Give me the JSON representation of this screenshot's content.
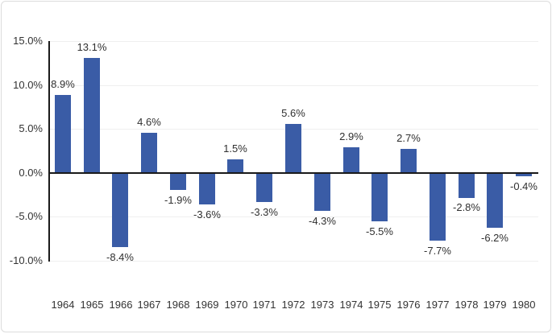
{
  "chart_data": {
    "type": "bar",
    "title": "",
    "xlabel": "",
    "ylabel": "",
    "categories": [
      "1964",
      "1965",
      "1966",
      "1967",
      "1968",
      "1969",
      "1970",
      "1971",
      "1972",
      "1973",
      "1974",
      "1975",
      "1976",
      "1977",
      "1978",
      "1979",
      "1980"
    ],
    "values": [
      8.9,
      13.1,
      -8.4,
      4.6,
      -1.9,
      -3.6,
      1.5,
      -3.3,
      5.6,
      -4.3,
      2.9,
      -5.5,
      2.7,
      -7.7,
      -2.8,
      -6.2,
      -0.4
    ],
    "data_labels": [
      "8.9%",
      "13.1%",
      "-8.4%",
      "4.6%",
      "-1.9%",
      "-3.6%",
      "1.5%",
      "-3.3%",
      "5.6%",
      "-4.3%",
      "2.9%",
      "-5.5%",
      "2.7%",
      "-7.7%",
      "-2.8%",
      "-6.2%",
      "-0.4%"
    ],
    "ylim": [
      -10,
      15
    ],
    "ytick_values": [
      15,
      10,
      5,
      0,
      -5,
      -10
    ],
    "ytick_labels": [
      "15.0%",
      "10.0%",
      "5.0%",
      "0.0%",
      "-5.0%",
      "-10.0%"
    ],
    "grid": true,
    "legend": false,
    "label_position": "outside-end",
    "colors": {
      "bar": "#3a5ca6",
      "axis": "#1a1a1a",
      "gridline": "#efefef",
      "text": "#333333",
      "frame_border": "#dcdcdc",
      "background": "#ffffff"
    }
  }
}
